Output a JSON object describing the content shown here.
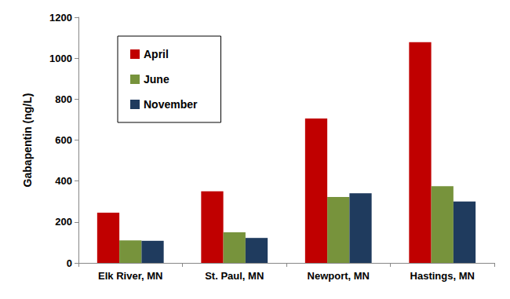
{
  "chart_data": {
    "type": "bar",
    "y_label": "Gabapentin (ng/L)",
    "categories": [
      "Elk River, MN",
      "St. Paul, MN",
      "Newport, MN",
      "Hastings, MN"
    ],
    "series": [
      {
        "name": "April",
        "color": "#c00000",
        "values": [
          245,
          350,
          705,
          1078
        ]
      },
      {
        "name": "June",
        "color": "#77933c",
        "values": [
          110,
          150,
          322,
          375
        ]
      },
      {
        "name": "November",
        "color": "#1f3b5e",
        "values": [
          108,
          122,
          340,
          300
        ]
      }
    ],
    "ylim": [
      0,
      1200
    ],
    "yticks": [
      0,
      200,
      400,
      600,
      800,
      1000,
      1200
    ],
    "grid": false,
    "legend": "upper left"
  }
}
